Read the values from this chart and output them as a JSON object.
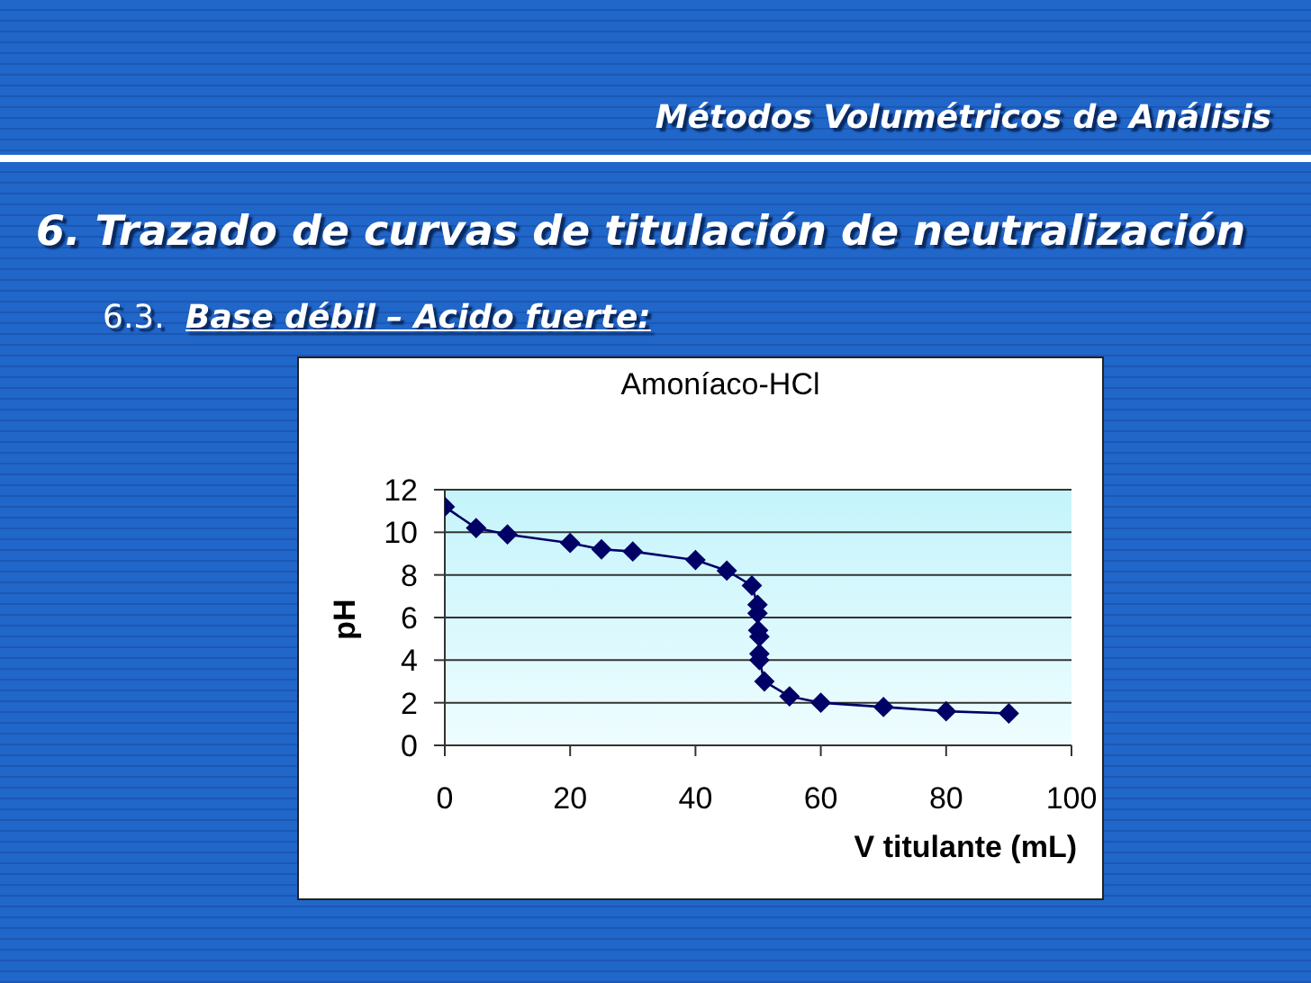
{
  "chart_data": {
    "type": "line",
    "title": "Amoníaco-HCl",
    "xlabel": "V titulante (mL)",
    "ylabel": "pH",
    "annotations": [
      "Métodos Volumétricos de Análisis",
      "6. Trazado de curvas de titulación de neutralización",
      "6.3.",
      "Base débil – Acido fuerte:"
    ],
    "x": [
      0,
      5,
      10,
      20,
      25,
      30,
      40,
      45,
      49,
      49.9,
      49.9,
      50,
      50.2,
      50.2,
      50.2,
      51,
      55,
      60,
      70,
      80,
      90
    ],
    "series": [
      {
        "color": "#000066",
        "values": [
          11.2,
          10.2,
          9.9,
          9.5,
          9.2,
          9.1,
          8.7,
          8.2,
          7.5,
          6.6,
          6.2,
          5.4,
          5.1,
          4.3,
          4.0,
          3.0,
          2.3,
          2.0,
          1.8,
          1.6,
          1.5
        ]
      }
    ],
    "xlim": [
      0,
      100
    ],
    "xticks": [
      0,
      20,
      40,
      60,
      80,
      100
    ],
    "ylim": [
      0,
      12
    ],
    "yticks": [
      0,
      2,
      4,
      6,
      8,
      10,
      12
    ],
    "grid": "y",
    "marker": "diamond",
    "line_style": "solid"
  }
}
